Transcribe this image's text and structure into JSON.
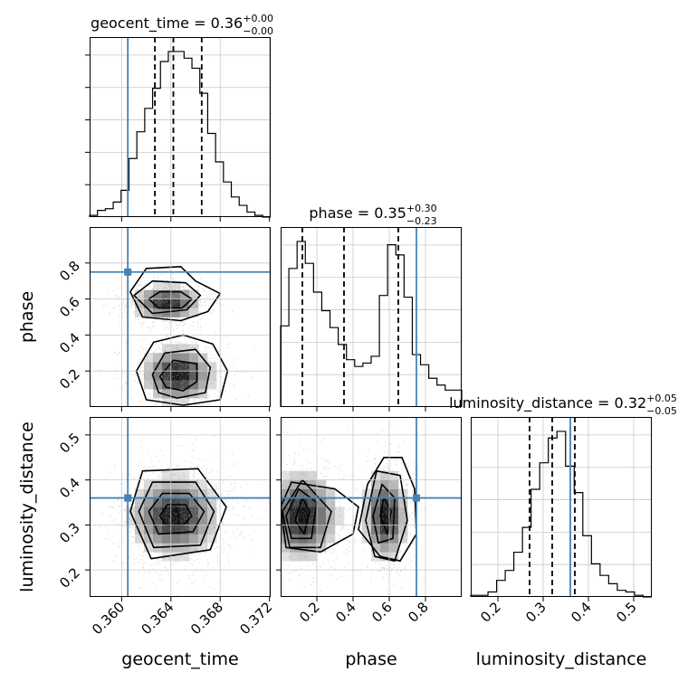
{
  "chart_data": {
    "type": "corner",
    "params": [
      "geocent_time",
      "phase",
      "luminosity_distance"
    ],
    "truths": {
      "geocent_time": 0.3605,
      "phase": 0.75,
      "luminosity_distance": 0.36
    },
    "truth_color": "#4682b4",
    "ranges": {
      "geocent_time": [
        0.3574,
        0.3721
      ],
      "phase": [
        0.0,
        1.0
      ],
      "luminosity_distance": [
        0.14,
        0.54
      ]
    },
    "ticks": {
      "geocent_time": [
        "0.360",
        "0.364",
        "0.368",
        "0.372"
      ],
      "phase": [
        "0.2",
        "0.4",
        "0.6",
        "0.8"
      ],
      "luminosity_distance": [
        "0.2",
        "0.3",
        "0.4",
        "0.5"
      ]
    },
    "diag": [
      {
        "param": "geocent_time",
        "title_name": "geocent_time = ",
        "title_value": "0.36",
        "title_plus": "+0.00",
        "title_minus": "−0.00",
        "median": 0.3642,
        "lower": 0.3627,
        "upper": 0.3665,
        "hist": [
          1,
          4,
          5,
          9,
          16,
          35,
          51,
          65,
          77,
          93,
          99,
          99,
          95,
          89,
          74,
          50,
          33,
          21,
          12,
          7,
          3,
          1,
          0
        ]
      },
      {
        "param": "phase",
        "title_name": "phase = ",
        "title_value": "0.35",
        "title_plus": "+0.30",
        "title_minus": "−0.23",
        "median": 0.35,
        "lower": 0.12,
        "upper": 0.65,
        "hist": [
          48,
          82,
          98,
          85,
          68,
          57,
          47,
          37,
          28,
          24,
          26,
          30,
          66,
          96,
          90,
          65,
          31,
          25,
          17,
          13,
          10,
          10
        ]
      },
      {
        "param": "luminosity_distance",
        "title_name": "luminosity_distance = ",
        "title_value": "0.32",
        "title_plus": "+0.05",
        "title_minus": "−0.05",
        "median": 0.32,
        "lower": 0.27,
        "upper": 0.37,
        "hist": [
          1,
          1,
          3,
          10,
          16,
          27,
          42,
          65,
          81,
          96,
          100,
          79,
          63,
          37,
          20,
          13,
          8,
          4,
          3,
          1,
          0
        ]
      }
    ],
    "pairs": [
      {
        "x": "geocent_time",
        "y": "phase",
        "modes": [
          {
            "cx": 0.3637,
            "cy": 0.58,
            "sx": 0.0014,
            "sy": 0.05,
            "w": 1.0
          },
          {
            "cx": 0.3646,
            "cy": 0.18,
            "sx": 0.0015,
            "sy": 0.08,
            "w": 1.05
          }
        ],
        "contours": [
          {
            "points": [
              [
                0.3622,
                0.6
              ],
              [
                0.3631,
                0.64
              ],
              [
                0.3648,
                0.64
              ],
              [
                0.3657,
                0.6
              ],
              [
                0.3649,
                0.55
              ],
              [
                0.363,
                0.55
              ]
            ]
          },
          {
            "points": [
              [
                0.361,
                0.62
              ],
              [
                0.3625,
                0.7
              ],
              [
                0.3652,
                0.69
              ],
              [
                0.3664,
                0.62
              ],
              [
                0.3653,
                0.54
              ],
              [
                0.3625,
                0.52
              ]
            ]
          },
          {
            "points": [
              [
                0.3607,
                0.64
              ],
              [
                0.362,
                0.77
              ],
              [
                0.3648,
                0.78
              ],
              [
                0.366,
                0.7
              ],
              [
                0.368,
                0.63
              ],
              [
                0.367,
                0.53
              ],
              [
                0.3648,
                0.48
              ],
              [
                0.3617,
                0.5
              ]
            ]
          },
          {
            "points": [
              [
                0.3631,
                0.17
              ],
              [
                0.3642,
                0.26
              ],
              [
                0.3661,
                0.24
              ],
              [
                0.3661,
                0.14
              ],
              [
                0.365,
                0.09
              ],
              [
                0.3636,
                0.11
              ]
            ]
          },
          {
            "points": [
              [
                0.3625,
                0.18
              ],
              [
                0.3635,
                0.3
              ],
              [
                0.366,
                0.32
              ],
              [
                0.3672,
                0.22
              ],
              [
                0.3668,
                0.08
              ],
              [
                0.3645,
                0.05
              ],
              [
                0.363,
                0.08
              ]
            ]
          },
          {
            "points": [
              [
                0.3612,
                0.2
              ],
              [
                0.3626,
                0.36
              ],
              [
                0.365,
                0.4
              ],
              [
                0.3674,
                0.35
              ],
              [
                0.3686,
                0.2
              ],
              [
                0.368,
                0.04
              ],
              [
                0.365,
                0.01
              ],
              [
                0.362,
                0.04
              ]
            ]
          }
        ]
      },
      {
        "x": "geocent_time",
        "y": "luminosity_distance",
        "modes": [
          {
            "cx": 0.3643,
            "cy": 0.32,
            "sx": 0.0018,
            "sy": 0.045,
            "w": 1.0
          }
        ],
        "contours": [
          {
            "points": [
              [
                0.3631,
                0.32
              ],
              [
                0.3637,
                0.345
              ],
              [
                0.3652,
                0.345
              ],
              [
                0.3657,
                0.32
              ],
              [
                0.365,
                0.3
              ],
              [
                0.3636,
                0.3
              ]
            ]
          },
          {
            "points": [
              [
                0.3622,
                0.33
              ],
              [
                0.3633,
                0.37
              ],
              [
                0.3655,
                0.37
              ],
              [
                0.3667,
                0.33
              ],
              [
                0.3658,
                0.285
              ],
              [
                0.363,
                0.28
              ]
            ]
          },
          {
            "points": [
              [
                0.3614,
                0.33
              ],
              [
                0.3625,
                0.395
              ],
              [
                0.366,
                0.395
              ],
              [
                0.3675,
                0.33
              ],
              [
                0.3664,
                0.255
              ],
              [
                0.3626,
                0.25
              ]
            ]
          },
          {
            "points": [
              [
                0.3607,
                0.33
              ],
              [
                0.3617,
                0.42
              ],
              [
                0.3662,
                0.425
              ],
              [
                0.3685,
                0.34
              ],
              [
                0.3672,
                0.245
              ],
              [
                0.3624,
                0.225
              ]
            ]
          }
        ]
      },
      {
        "x": "phase",
        "y": "luminosity_distance",
        "modes": [
          {
            "cx": 0.12,
            "cy": 0.32,
            "sx": 0.1,
            "sy": 0.05,
            "w": 1.0
          },
          {
            "cx": 0.58,
            "cy": 0.32,
            "sx": 0.06,
            "sy": 0.05,
            "w": 1.0
          }
        ],
        "contours": [
          {
            "points": [
              [
                0.08,
                0.31
              ],
              [
                0.12,
                0.36
              ],
              [
                0.16,
                0.33
              ],
              [
                0.13,
                0.28
              ]
            ]
          },
          {
            "points": [
              [
                0.03,
                0.32
              ],
              [
                0.1,
                0.38
              ],
              [
                0.2,
                0.35
              ],
              [
                0.17,
                0.27
              ],
              [
                0.06,
                0.27
              ]
            ]
          },
          {
            "points": [
              [
                0.01,
                0.33
              ],
              [
                0.12,
                0.4
              ],
              [
                0.28,
                0.33
              ],
              [
                0.22,
                0.25
              ],
              [
                0.05,
                0.25
              ]
            ]
          },
          {
            "points": [
              [
                0.0,
                0.34
              ],
              [
                0.06,
                0.395
              ],
              [
                0.3,
                0.38
              ],
              [
                0.43,
                0.34
              ],
              [
                0.4,
                0.28
              ],
              [
                0.22,
                0.24
              ],
              [
                0.03,
                0.25
              ]
            ]
          },
          {
            "points": [
              [
                0.55,
                0.32
              ],
              [
                0.57,
                0.36
              ],
              [
                0.61,
                0.33
              ],
              [
                0.59,
                0.28
              ]
            ]
          },
          {
            "points": [
              [
                0.51,
                0.32
              ],
              [
                0.56,
                0.39
              ],
              [
                0.63,
                0.36
              ],
              [
                0.62,
                0.27
              ],
              [
                0.54,
                0.26
              ]
            ]
          },
          {
            "points": [
              [
                0.47,
                0.31
              ],
              [
                0.53,
                0.42
              ],
              [
                0.66,
                0.41
              ],
              [
                0.7,
                0.31
              ],
              [
                0.63,
                0.22
              ],
              [
                0.52,
                0.23
              ]
            ]
          },
          {
            "points": [
              [
                0.43,
                0.29
              ],
              [
                0.48,
                0.39
              ],
              [
                0.57,
                0.45
              ],
              [
                0.67,
                0.45
              ],
              [
                0.74,
                0.38
              ],
              [
                0.75,
                0.28
              ],
              [
                0.66,
                0.22
              ],
              [
                0.55,
                0.23
              ]
            ]
          }
        ]
      }
    ]
  }
}
